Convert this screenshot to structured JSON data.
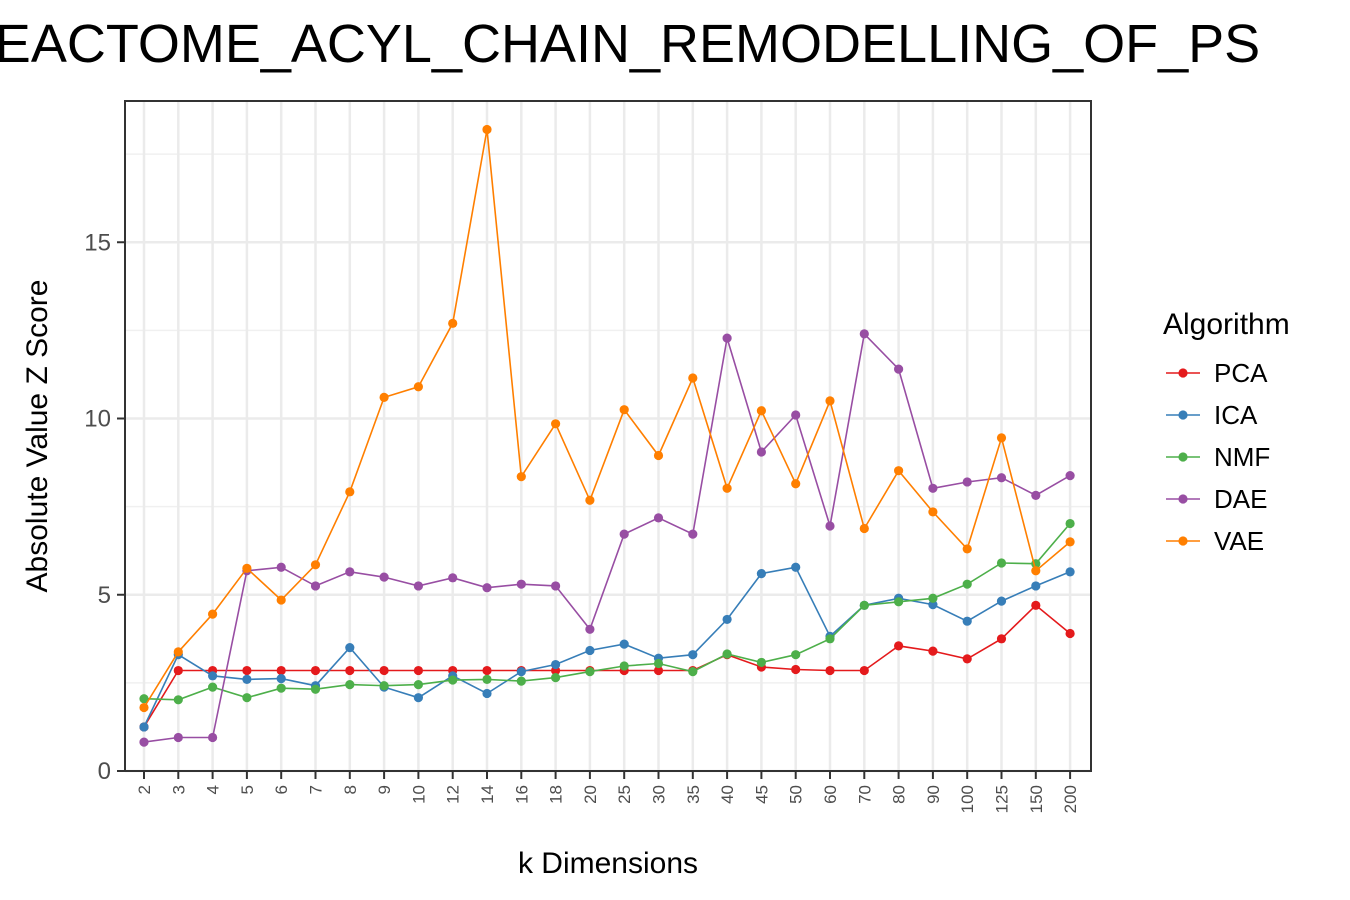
{
  "chart_data": {
    "type": "line",
    "title": "REACTOME_ACYL_CHAIN_REMODELLING_OF_PS",
    "xlabel": "k Dimensions",
    "ylabel": "Absolute Value Z Score",
    "categories": [
      "2",
      "3",
      "4",
      "5",
      "6",
      "7",
      "8",
      "9",
      "10",
      "12",
      "14",
      "16",
      "18",
      "20",
      "25",
      "30",
      "35",
      "40",
      "45",
      "50",
      "60",
      "70",
      "80",
      "90",
      "100",
      "125",
      "150",
      "200"
    ],
    "ylim": [
      0,
      19
    ],
    "yticks": [
      0,
      5,
      10,
      15
    ],
    "grid": true,
    "legend_title": "Algorithm",
    "legend_position": "right",
    "series": [
      {
        "name": "PCA",
        "color": "#e41a1c",
        "values": [
          1.25,
          2.85,
          2.85,
          2.85,
          2.85,
          2.85,
          2.85,
          2.85,
          2.85,
          2.85,
          2.85,
          2.85,
          2.85,
          2.85,
          2.85,
          2.85,
          2.85,
          3.3,
          2.95,
          2.88,
          2.85,
          2.85,
          3.55,
          3.4,
          3.18,
          3.75,
          4.7,
          3.9
        ]
      },
      {
        "name": "ICA",
        "color": "#377eb8",
        "values": [
          1.25,
          3.3,
          2.7,
          2.6,
          2.62,
          2.42,
          3.5,
          2.38,
          2.08,
          2.7,
          2.2,
          2.82,
          3.02,
          3.42,
          3.6,
          3.2,
          3.3,
          4.3,
          5.6,
          5.78,
          3.82,
          4.7,
          4.9,
          4.72,
          4.25,
          4.82,
          5.25,
          5.65
        ]
      },
      {
        "name": "NMF",
        "color": "#4daf4a",
        "values": [
          2.05,
          2.02,
          2.38,
          2.08,
          2.35,
          2.32,
          2.45,
          2.42,
          2.45,
          2.58,
          2.6,
          2.55,
          2.65,
          2.82,
          2.98,
          3.05,
          2.82,
          3.32,
          3.08,
          3.3,
          3.75,
          4.7,
          4.8,
          4.9,
          5.3,
          5.9,
          5.88,
          7.02
        ]
      },
      {
        "name": "DAE",
        "color": "#984ea3",
        "values": [
          0.82,
          0.95,
          0.95,
          5.68,
          5.78,
          5.25,
          5.65,
          5.5,
          5.25,
          5.48,
          5.2,
          5.3,
          5.25,
          4.02,
          6.72,
          7.18,
          6.72,
          12.28,
          9.05,
          10.1,
          6.95,
          12.4,
          11.4,
          8.02,
          8.2,
          8.32,
          7.82,
          8.38
        ]
      },
      {
        "name": "VAE",
        "color": "#ff7f00",
        "values": [
          1.8,
          3.38,
          4.45,
          5.75,
          4.85,
          5.85,
          7.92,
          10.6,
          10.9,
          12.7,
          18.2,
          8.35,
          9.85,
          7.68,
          10.25,
          8.95,
          11.15,
          8.02,
          10.22,
          8.15,
          10.5,
          6.88,
          8.52,
          7.35,
          6.3,
          9.45,
          5.68,
          6.5
        ]
      }
    ]
  }
}
